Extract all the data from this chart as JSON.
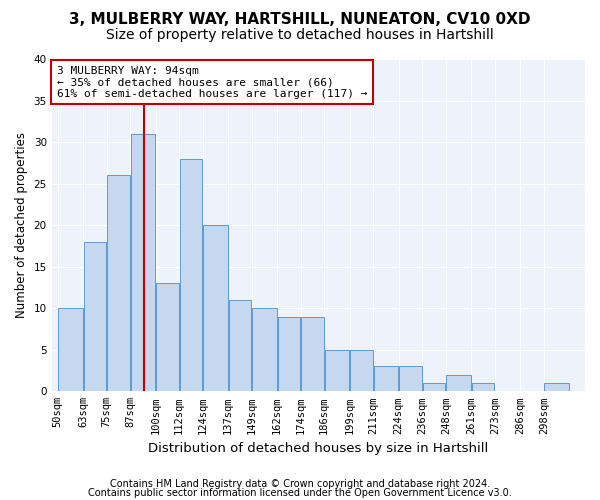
{
  "title1": "3, MULBERRY WAY, HARTSHILL, NUNEATON, CV10 0XD",
  "title2": "Size of property relative to detached houses in Hartshill",
  "xlabel": "Distribution of detached houses by size in Hartshill",
  "ylabel": "Number of detached properties",
  "bin_labels": [
    "50sqm",
    "63sqm",
    "75sqm",
    "87sqm",
    "100sqm",
    "112sqm",
    "124sqm",
    "137sqm",
    "149sqm",
    "162sqm",
    "174sqm",
    "186sqm",
    "199sqm",
    "211sqm",
    "224sqm",
    "236sqm",
    "248sqm",
    "261sqm",
    "273sqm",
    "286sqm",
    "298sqm"
  ],
  "bin_edges": [
    50,
    63,
    75,
    87,
    100,
    112,
    124,
    137,
    149,
    162,
    174,
    186,
    199,
    211,
    224,
    236,
    248,
    261,
    273,
    286,
    298,
    311
  ],
  "values": [
    10,
    18,
    26,
    31,
    13,
    28,
    20,
    11,
    10,
    9,
    9,
    5,
    5,
    3,
    3,
    1,
    2,
    1,
    0,
    0,
    1
  ],
  "bar_color": "#c5d8f0",
  "bar_edge_color": "#5b9bd5",
  "vline_x": 94,
  "vline_color": "#c00000",
  "annotation_line1": "3 MULBERRY WAY: 94sqm",
  "annotation_line2": "← 35% of detached houses are smaller (66)",
  "annotation_line3": "61% of semi-detached houses are larger (117) →",
  "annotation_box_color": "white",
  "annotation_box_edge": "#c00000",
  "ylim": [
    0,
    40
  ],
  "yticks": [
    0,
    5,
    10,
    15,
    20,
    25,
    30,
    35,
    40
  ],
  "footer1": "Contains HM Land Registry data © Crown copyright and database right 2024.",
  "footer2": "Contains public sector information licensed under the Open Government Licence v3.0.",
  "bg_color": "#eef3fb",
  "grid_color": "white",
  "title1_fontsize": 11,
  "title2_fontsize": 10,
  "xlabel_fontsize": 9.5,
  "ylabel_fontsize": 8.5,
  "tick_fontsize": 7.5,
  "annot_fontsize": 8,
  "footer_fontsize": 7
}
